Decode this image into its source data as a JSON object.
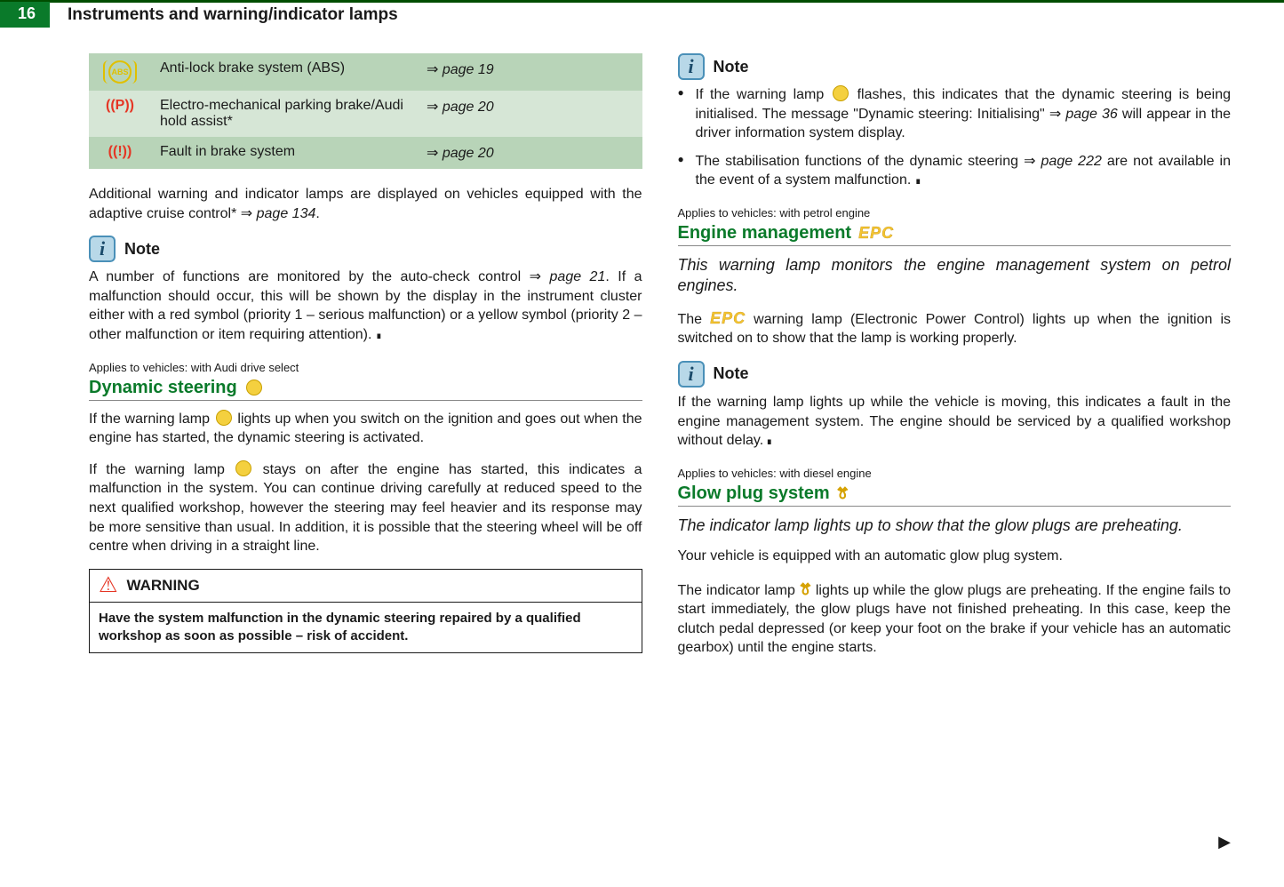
{
  "header": {
    "page_number": "16",
    "chapter": "Instruments and warning/indicator lamps"
  },
  "table_rows": [
    {
      "desc": "Anti-lock brake system (ABS)",
      "link": "page 19"
    },
    {
      "desc": "Electro-mechanical parking brake/Audi hold assist*",
      "link": "page 20"
    },
    {
      "desc": "Fault in brake system",
      "link": "page 20"
    }
  ],
  "left": {
    "after_table_1": "Additional warning and indicator lamps are displayed on vehicles equipped with the adaptive cruise control* ",
    "after_table_ref": "page 134",
    "after_table_2": ".",
    "note_label": "Note",
    "note_p1a": "A number of functions are monitored by the auto-check control ",
    "note_ref": "page 21",
    "note_p1b": ". If a malfunction should occur, this will be shown by the display in the instrument cluster either with a red symbol (priority 1 – serious malfunction) or a yellow symbol (priority 2 – other malfunction or item requiring attention).",
    "ds_applies": "Applies to vehicles: with Audi drive select",
    "ds_title": "Dynamic steering",
    "ds_p1a": "If the warning lamp ",
    "ds_p1b": " lights up when you switch on the ignition and goes out when the engine has started, the dynamic steering is activated.",
    "ds_p2a": "If the warning lamp ",
    "ds_p2b": " stays on after the engine has started, this indicates a malfunction in the system. You can continue driving carefully at reduced speed to the next qualified workshop, however the steering may feel heavier and its response may be more sensitive than usual. In addition, it is possible that the steering wheel will be off centre when driving in a straight line.",
    "warn_label": "WARNING",
    "warn_body": "Have the system malfunction in the dynamic steering repaired by a qualified workshop as soon as possible – risk of accident."
  },
  "right": {
    "note_label": "Note",
    "b1a": "If the warning lamp ",
    "b1b": " flashes, this indicates that the dynamic steering is being initialised. The message \"Dynamic steering: Initialising\" ",
    "b1ref": "page 36",
    "b1c": " will appear in the driver information system display.",
    "b2a": "The stabilisation functions of the dynamic steering ",
    "b2ref": "page 222",
    "b2b": " are not available in the event of a system malfunction.",
    "em_applies": "Applies to vehicles: with petrol engine",
    "em_title": "Engine management",
    "em_intro": "This warning lamp monitors the engine management system on petrol engines.",
    "em_p1a": "The ",
    "em_p1b": " warning lamp (Electronic Power Control) lights up when the ignition is switched on to show that the lamp is working properly.",
    "em_note_label": "Note",
    "em_note_p": "If the warning lamp lights up while the vehicle is moving, this indicates a fault in the engine management system. The engine should be serviced by a qualified workshop without delay.",
    "gp_applies": "Applies to vehicles: with diesel engine",
    "gp_title": "Glow plug system",
    "gp_intro": "The indicator lamp lights up to show that the glow plugs are preheating.",
    "gp_p1": "Your vehicle is equipped with an automatic glow plug system.",
    "gp_p2a": "The indicator lamp ",
    "gp_p2b": " lights up while the glow plugs are preheating. If the engine fails to start immediately, the glow plugs have not finished preheating. In this case, keep the clutch pedal depressed (or keep your foot on the brake if your vehicle has an automatic gearbox) until the engine starts."
  },
  "icons": {
    "epc": "EPC",
    "coil": "ꔢ"
  },
  "cont_arrow": "▶"
}
